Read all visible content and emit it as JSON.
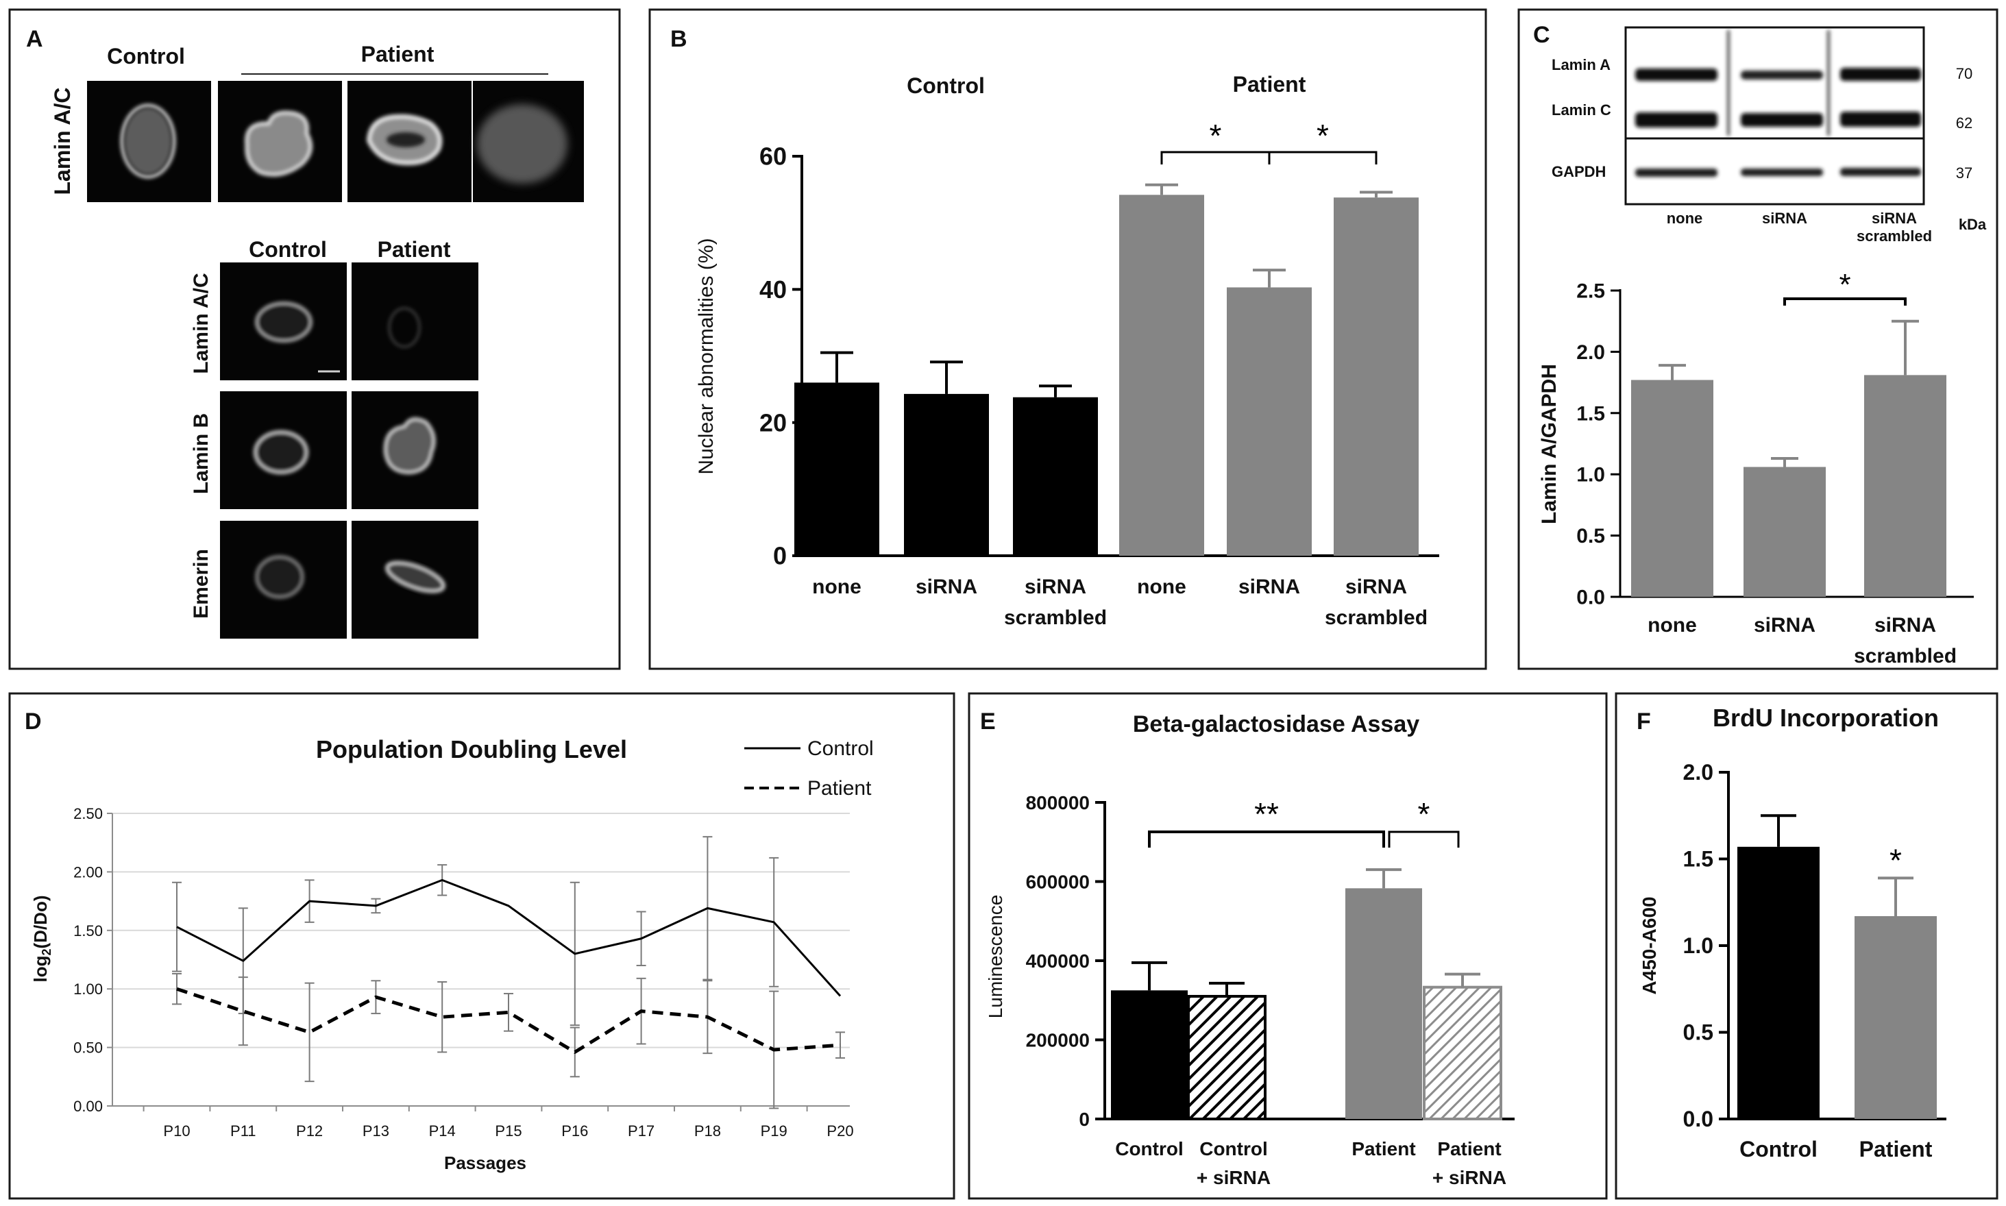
{
  "colors": {
    "control": "#000000",
    "patient": "#858585",
    "hatch_control": "#000000",
    "hatch_patient": "#8c8c8c",
    "micrograph_bg": "#050505"
  },
  "panelA": {
    "letter": "A",
    "top": {
      "control_label": "Control",
      "patient_label": "Patient",
      "row_label": "Lamin A/C"
    },
    "bottom": {
      "col_labels": [
        "Control",
        "Patient"
      ],
      "row_labels": [
        "Lamin A/C",
        "Lamin B",
        "Emerin"
      ]
    }
  },
  "panelC_blot": {
    "letter": "C",
    "band_labels": [
      "Lamin A",
      "Lamin C",
      "GAPDH"
    ],
    "kda_values": [
      "70",
      "62",
      "37"
    ],
    "kda_unit": "kDa",
    "lanes": [
      "none",
      "siRNA",
      "siRNA\nscrambled"
    ]
  },
  "chart_data": [
    {
      "id": "B",
      "type": "bar",
      "letter": "B",
      "group_labels": [
        "Control",
        "Patient"
      ],
      "categories": [
        "none",
        "siRNA",
        "siRNA\nscrambled",
        "none",
        "siRNA",
        "siRNA\nscrambled"
      ],
      "values": [
        26,
        24.3,
        23.8,
        54.2,
        40.3,
        53.8
      ],
      "errors": [
        4.5,
        4.8,
        1.7,
        1.5,
        2.6,
        0.8
      ],
      "groups": [
        "Control",
        "Control",
        "Control",
        "Patient",
        "Patient",
        "Patient"
      ],
      "ylabel": "Nuclear abnormalities (%)",
      "ylim": [
        0,
        60
      ],
      "yticks": [
        "0",
        "20",
        "40",
        "60"
      ],
      "significance": [
        {
          "from": 3,
          "to": 4,
          "label": "*"
        },
        {
          "from": 4,
          "to": 5,
          "label": "*"
        }
      ]
    },
    {
      "id": "C",
      "type": "bar",
      "categories": [
        "none",
        "siRNA",
        "siRNA\nscrambled"
      ],
      "values": [
        1.77,
        1.06,
        1.81
      ],
      "errors": [
        0.12,
        0.07,
        0.44
      ],
      "groups": [
        "Patient",
        "Patient",
        "Patient"
      ],
      "ylabel": "Lamin A/GAPDH",
      "ylim": [
        0,
        2.5
      ],
      "yticks": [
        "0.0",
        "0.5",
        "1.0",
        "1.5",
        "2.0",
        "2.5"
      ],
      "significance": [
        {
          "from": 1,
          "to": 2,
          "label": "*"
        }
      ]
    },
    {
      "id": "D",
      "type": "line",
      "letter": "D",
      "title": "Population Doubling Level",
      "xlabel": "Passages",
      "ylabel_main": "log",
      "ylabel_sub": "2",
      "ylabel_rest": "(D/Do)",
      "x": [
        "P10",
        "P11",
        "P12",
        "P13",
        "P14",
        "P15",
        "P16",
        "P17",
        "P18",
        "P19",
        "P20"
      ],
      "ylim": [
        0,
        2.5
      ],
      "yticks": [
        "0.00",
        "0.50",
        "1.00",
        "1.50",
        "2.00",
        "2.50"
      ],
      "grid": true,
      "legend_position": "top-right",
      "series": [
        {
          "name": "Control",
          "style": "solid",
          "values": [
            1.53,
            1.24,
            1.75,
            1.71,
            1.93,
            1.71,
            1.3,
            1.43,
            1.69,
            1.57,
            0.94
          ],
          "errors": [
            0.38,
            0.45,
            0.18,
            0.06,
            0.13,
            0,
            0.61,
            0.23,
            0.61,
            0.55,
            0
          ]
        },
        {
          "name": "Patient",
          "style": "dashed",
          "values": [
            1.0,
            0.81,
            0.63,
            0.93,
            0.76,
            0.8,
            0.46,
            0.81,
            0.76,
            0.48,
            0.52
          ],
          "errors": [
            0.13,
            0.29,
            0.42,
            0.14,
            0.3,
            0.16,
            0.21,
            0.28,
            0.31,
            0.5,
            0.11
          ]
        }
      ]
    },
    {
      "id": "E",
      "type": "bar",
      "letter": "E",
      "title": "Beta-galactosidase Assay",
      "ylabel": "Luminescence",
      "categories": [
        "Control",
        "Control\n+ siRNA",
        "Patient",
        "Patient\n+ siRNA"
      ],
      "values": [
        325000,
        310000,
        583000,
        333000
      ],
      "errors": [
        70000,
        33000,
        47000,
        33000
      ],
      "groups": [
        "Control",
        "Control",
        "Patient",
        "Patient"
      ],
      "hatched": [
        false,
        true,
        false,
        true
      ],
      "ylim": [
        0,
        800000
      ],
      "yticks": [
        "0",
        "200000",
        "400000",
        "600000",
        "800000"
      ],
      "significance": [
        {
          "from": 0,
          "to": 2,
          "label": "**"
        },
        {
          "from": 2,
          "to": 3,
          "label": "*"
        }
      ]
    },
    {
      "id": "F",
      "type": "bar",
      "letter": "F",
      "title": "BrdU Incorporation",
      "ylabel": "A450-A600",
      "categories": [
        "Control",
        "Patient"
      ],
      "values": [
        1.57,
        1.17
      ],
      "errors": [
        0.18,
        0.22
      ],
      "groups": [
        "Control",
        "Patient"
      ],
      "ylim": [
        0,
        2.0
      ],
      "yticks": [
        "0.0",
        "0.5",
        "1.0",
        "1.5",
        "2.0"
      ],
      "significance": [
        {
          "over": 1,
          "label": "*"
        }
      ]
    }
  ]
}
